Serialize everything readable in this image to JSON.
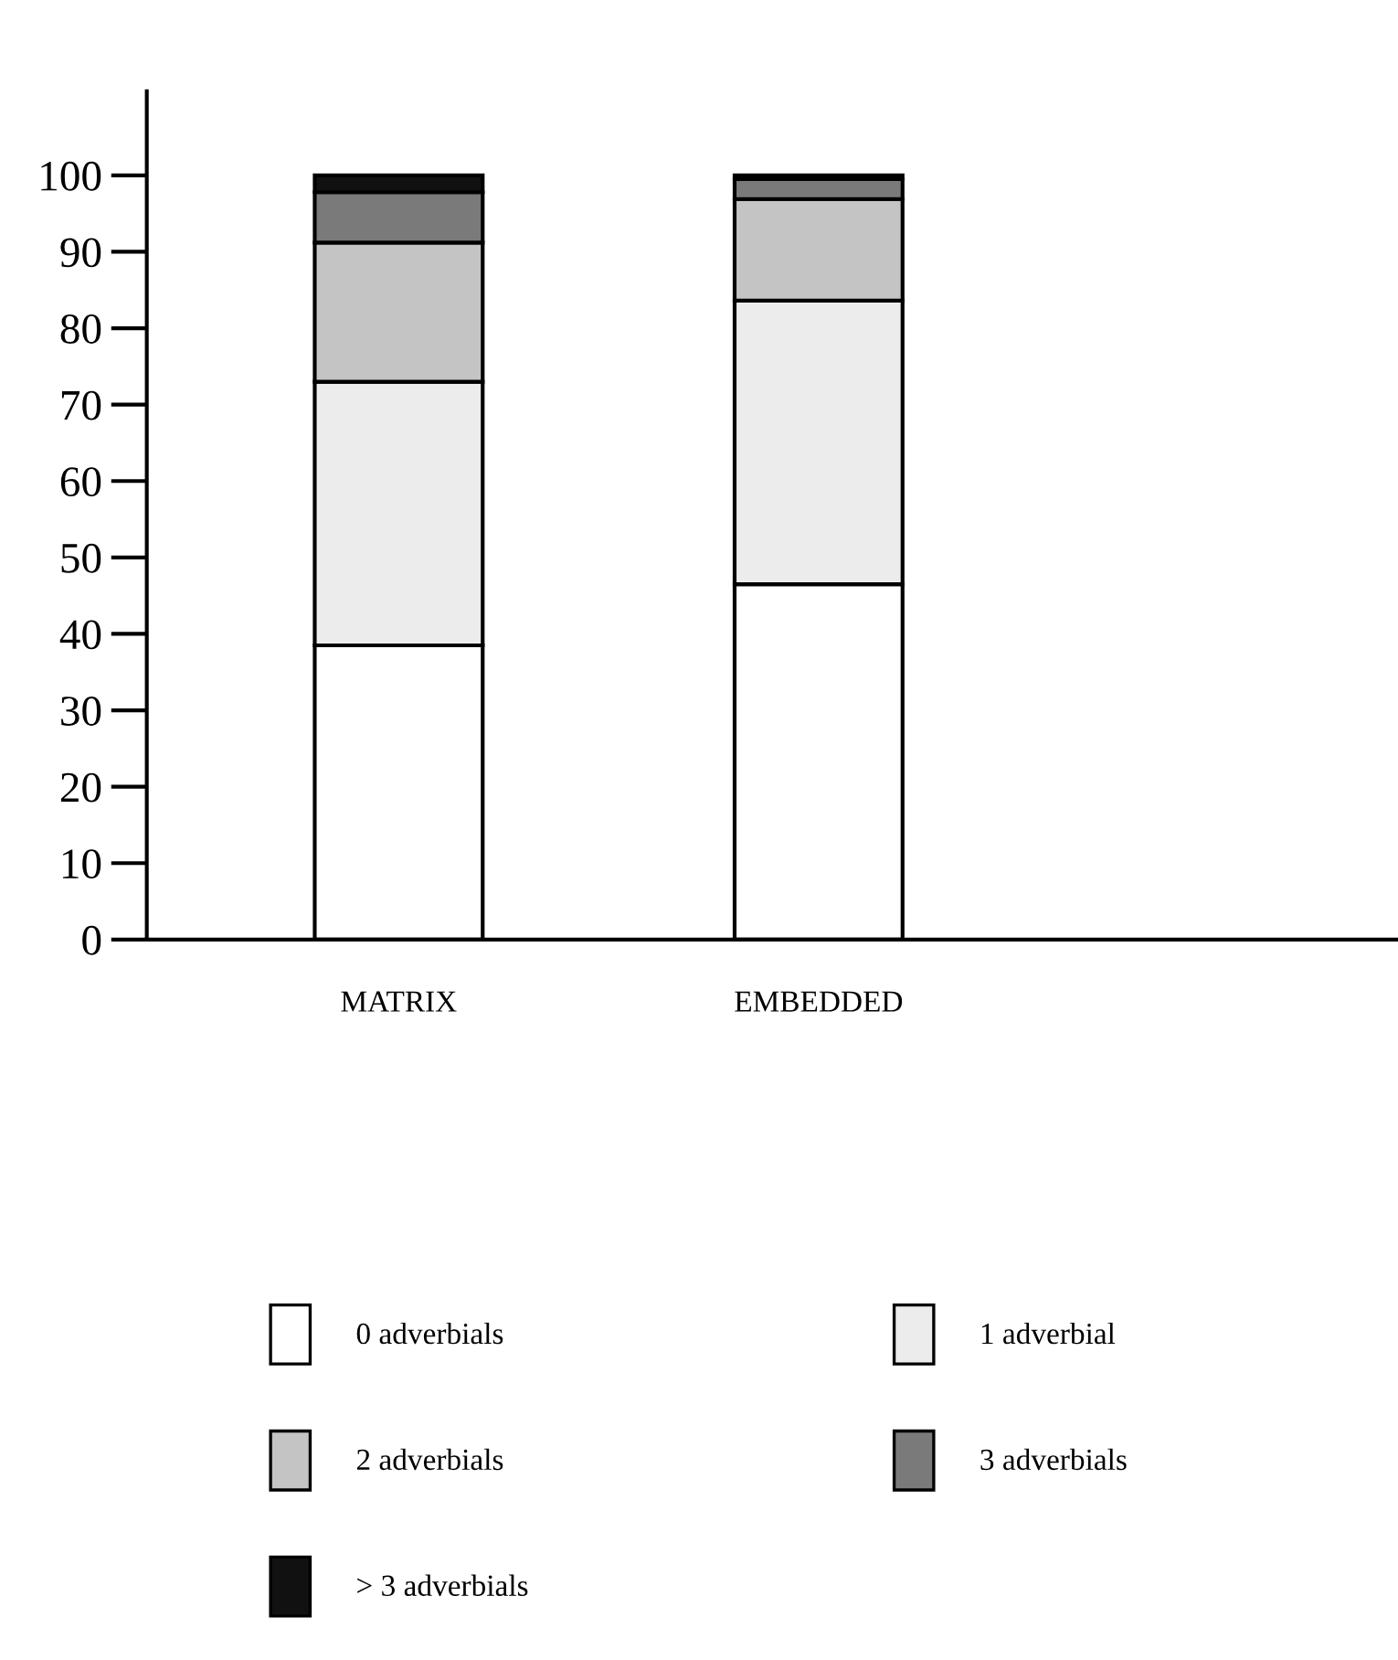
{
  "chart_data": {
    "type": "bar",
    "stacked": true,
    "categories": [
      "MATRIX",
      "EMBEDDED"
    ],
    "series": [
      {
        "name": "0 adverbials",
        "color": "#ffffff",
        "values": [
          38.5,
          46.5
        ]
      },
      {
        "name": "1 adverbial",
        "color": "#ececec",
        "values": [
          34.5,
          37.1
        ]
      },
      {
        "name": "2 adverbials",
        "color": "#c4c4c4",
        "values": [
          18.2,
          13.3
        ]
      },
      {
        "name": "3 adverbials",
        "color": "#7a7a7a",
        "values": [
          6.6,
          2.6
        ]
      },
      {
        "name": "> 3 adverbials",
        "color": "#111111",
        "values": [
          2.2,
          0.5
        ]
      }
    ],
    "ylim": [
      0,
      111
    ],
    "yticks": [
      0,
      10,
      20,
      30,
      40,
      50,
      60,
      70,
      80,
      90,
      100
    ],
    "grid": false,
    "legend": "bottom"
  }
}
